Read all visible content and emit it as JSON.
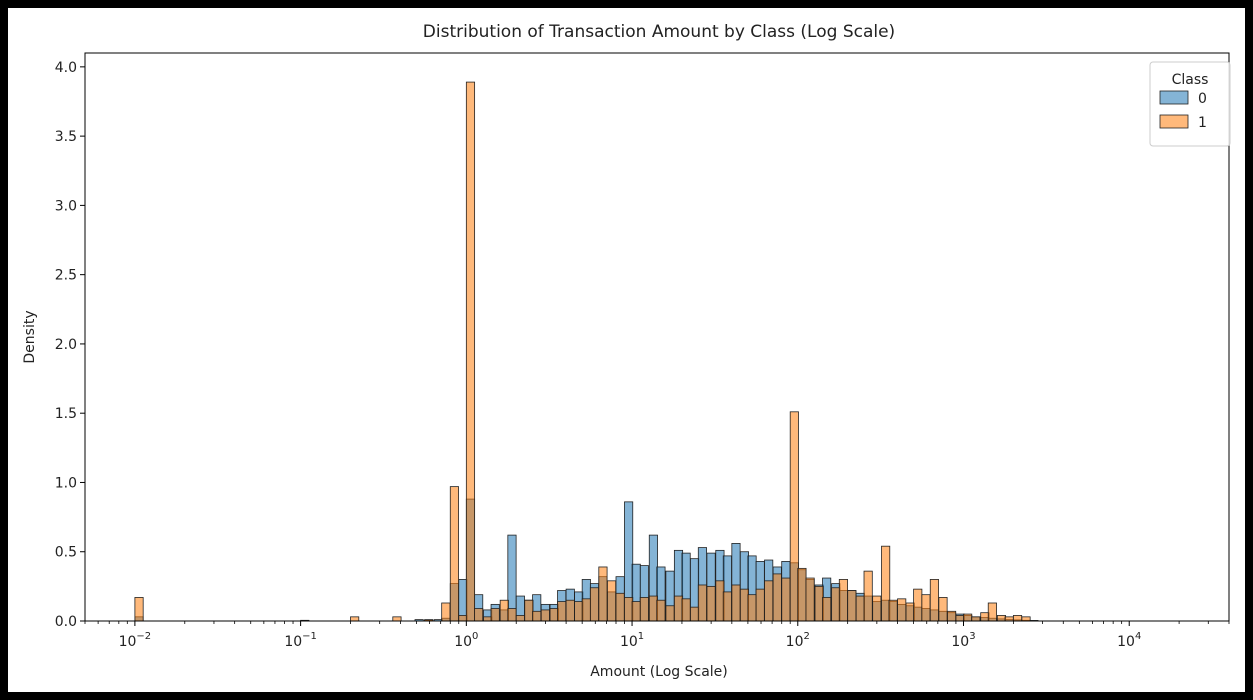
{
  "chart_data": {
    "type": "histogram",
    "title": "Distribution of Transaction Amount by Class (Log Scale)",
    "xlabel": "Amount (Log Scale)",
    "ylabel": "Density",
    "x_scale": "log",
    "xlim": [
      0.005,
      40000
    ],
    "ylim": [
      0,
      4.1
    ],
    "y_ticks": [
      "0.0",
      "0.5",
      "1.0",
      "1.5",
      "2.0",
      "2.5",
      "3.0",
      "3.5",
      "4.0"
    ],
    "x_ticks": [
      {
        "base": "10",
        "exp": "−2",
        "value": 0.01
      },
      {
        "base": "10",
        "exp": "−1",
        "value": 0.1
      },
      {
        "base": "10",
        "exp": "0",
        "value": 1
      },
      {
        "base": "10",
        "exp": "1",
        "value": 10
      },
      {
        "base": "10",
        "exp": "2",
        "value": 100
      },
      {
        "base": "10",
        "exp": "3",
        "value": 1000
      },
      {
        "base": "10",
        "exp": "4",
        "value": 10000
      }
    ],
    "grid": false,
    "legend": {
      "title": "Class",
      "position": "top-right"
    },
    "series": [
      {
        "name": "0",
        "color": "#1f77b4",
        "bins": [
          [
            0.01,
            0.03
          ],
          [
            0.1,
            0.005
          ],
          [
            0.49,
            0.01
          ],
          [
            0.56,
            0.005
          ],
          [
            0.64,
            0.01
          ],
          [
            0.71,
            0.02
          ],
          [
            0.8,
            0.27
          ],
          [
            0.9,
            0.3
          ],
          [
            1.0,
            0.88
          ],
          [
            1.12,
            0.19
          ],
          [
            1.27,
            0.08
          ],
          [
            1.41,
            0.12
          ],
          [
            1.6,
            0.08
          ],
          [
            1.78,
            0.62
          ],
          [
            2.0,
            0.18
          ],
          [
            2.25,
            0.15
          ],
          [
            2.51,
            0.19
          ],
          [
            2.83,
            0.12
          ],
          [
            3.2,
            0.12
          ],
          [
            3.55,
            0.22
          ],
          [
            4.0,
            0.23
          ],
          [
            4.5,
            0.21
          ],
          [
            5.0,
            0.3
          ],
          [
            5.6,
            0.27
          ],
          [
            6.3,
            0.32
          ],
          [
            7.1,
            0.21
          ],
          [
            8.0,
            0.32
          ],
          [
            9.0,
            0.86
          ],
          [
            10.0,
            0.41
          ],
          [
            11.2,
            0.4
          ],
          [
            12.7,
            0.62
          ],
          [
            14.1,
            0.39
          ],
          [
            16.0,
            0.36
          ],
          [
            18.0,
            0.51
          ],
          [
            20.0,
            0.49
          ],
          [
            22.5,
            0.45
          ],
          [
            25.1,
            0.53
          ],
          [
            28.3,
            0.49
          ],
          [
            32.0,
            0.51
          ],
          [
            35.5,
            0.47
          ],
          [
            40.0,
            0.56
          ],
          [
            45.0,
            0.5
          ],
          [
            50.0,
            0.47
          ],
          [
            56.0,
            0.43
          ],
          [
            63.0,
            0.44
          ],
          [
            71.0,
            0.39
          ],
          [
            80.0,
            0.43
          ],
          [
            90.0,
            0.42
          ],
          [
            100.0,
            0.37
          ],
          [
            112.0,
            0.3
          ],
          [
            127.0,
            0.26
          ],
          [
            141.0,
            0.31
          ],
          [
            160.0,
            0.27
          ],
          [
            178.0,
            0.22
          ],
          [
            200.0,
            0.22
          ],
          [
            225.0,
            0.2
          ],
          [
            251.0,
            0.18
          ],
          [
            283.0,
            0.14
          ],
          [
            320.0,
            0.15
          ],
          [
            355.0,
            0.14
          ],
          [
            400.0,
            0.12
          ],
          [
            450.0,
            0.11
          ],
          [
            500.0,
            0.1
          ],
          [
            560.0,
            0.09
          ],
          [
            630.0,
            0.08
          ],
          [
            710.0,
            0.07
          ],
          [
            800.0,
            0.06
          ],
          [
            900.0,
            0.05
          ],
          [
            1000.0,
            0.04
          ],
          [
            1120.0,
            0.03
          ],
          [
            1270.0,
            0.025
          ],
          [
            1410.0,
            0.02
          ],
          [
            1600.0,
            0.015
          ],
          [
            1780.0,
            0.01
          ],
          [
            2000.0,
            0.008
          ],
          [
            2250.0,
            0.005
          ],
          [
            2510.0,
            0.004
          ]
        ]
      },
      {
        "name": "1",
        "color": "#ff7f0e",
        "bins": [
          [
            0.01,
            0.17
          ],
          [
            0.2,
            0.03
          ],
          [
            0.36,
            0.03
          ],
          [
            0.56,
            0.01
          ],
          [
            0.71,
            0.13
          ],
          [
            0.8,
            0.97
          ],
          [
            0.9,
            0.04
          ],
          [
            1.0,
            3.89
          ],
          [
            1.12,
            0.09
          ],
          [
            1.27,
            0.03
          ],
          [
            1.41,
            0.09
          ],
          [
            1.6,
            0.15
          ],
          [
            1.78,
            0.09
          ],
          [
            2.0,
            0.04
          ],
          [
            2.25,
            0.15
          ],
          [
            2.51,
            0.07
          ],
          [
            2.83,
            0.08
          ],
          [
            3.2,
            0.09
          ],
          [
            3.55,
            0.14
          ],
          [
            4.0,
            0.15
          ],
          [
            4.5,
            0.14
          ],
          [
            5.0,
            0.16
          ],
          [
            5.6,
            0.24
          ],
          [
            6.3,
            0.39
          ],
          [
            7.1,
            0.29
          ],
          [
            8.0,
            0.2
          ],
          [
            9.0,
            0.17
          ],
          [
            10.0,
            0.14
          ],
          [
            11.2,
            0.17
          ],
          [
            12.7,
            0.18
          ],
          [
            14.1,
            0.15
          ],
          [
            16.0,
            0.11
          ],
          [
            18.0,
            0.18
          ],
          [
            20.0,
            0.16
          ],
          [
            22.5,
            0.1
          ],
          [
            25.1,
            0.26
          ],
          [
            28.3,
            0.25
          ],
          [
            32.0,
            0.29
          ],
          [
            35.5,
            0.21
          ],
          [
            40.0,
            0.26
          ],
          [
            45.0,
            0.23
          ],
          [
            50.0,
            0.19
          ],
          [
            56.0,
            0.23
          ],
          [
            63.0,
            0.29
          ],
          [
            71.0,
            0.34
          ],
          [
            80.0,
            0.31
          ],
          [
            90.0,
            1.51
          ],
          [
            100.0,
            0.38
          ],
          [
            112.0,
            0.31
          ],
          [
            127.0,
            0.25
          ],
          [
            141.0,
            0.17
          ],
          [
            160.0,
            0.24
          ],
          [
            178.0,
            0.3
          ],
          [
            200.0,
            0.22
          ],
          [
            225.0,
            0.18
          ],
          [
            251.0,
            0.36
          ],
          [
            283.0,
            0.18
          ],
          [
            320.0,
            0.54
          ],
          [
            355.0,
            0.15
          ],
          [
            400.0,
            0.16
          ],
          [
            450.0,
            0.13
          ],
          [
            500.0,
            0.23
          ],
          [
            560.0,
            0.19
          ],
          [
            630.0,
            0.3
          ],
          [
            710.0,
            0.17
          ],
          [
            800.0,
            0.07
          ],
          [
            900.0,
            0.04
          ],
          [
            1000.0,
            0.05
          ],
          [
            1120.0,
            0.03
          ],
          [
            1270.0,
            0.06
          ],
          [
            1410.0,
            0.13
          ],
          [
            1600.0,
            0.04
          ],
          [
            1780.0,
            0.03
          ],
          [
            2000.0,
            0.04
          ],
          [
            2250.0,
            0.03
          ]
        ]
      }
    ]
  }
}
